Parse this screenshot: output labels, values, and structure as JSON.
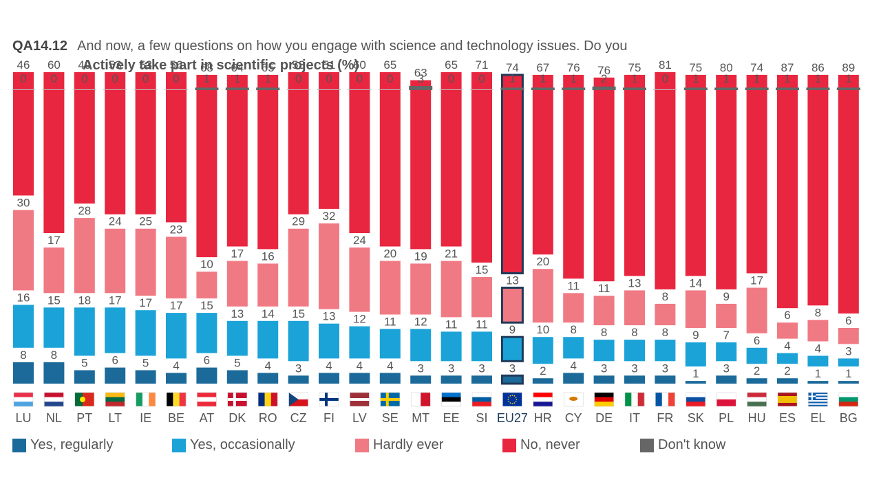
{
  "header": {
    "code": "QA14.12",
    "question": "And now, a few questions on how you engage with science and technology issues. Do you",
    "subtitle": "Actively take part in scientific projects  (%)"
  },
  "colors": {
    "Yes, regularly": "#1b6a9a",
    "Yes, occasionally": "#1ba3d8",
    "Hardly ever": "#f07a84",
    "No, never": "#e8263f",
    "Don't know": "#666666"
  },
  "legend": [
    {
      "label": "Yes, regularly",
      "key": "regularly"
    },
    {
      "label": "Yes, occasionally",
      "key": "occasionally"
    },
    {
      "label": "Hardly ever",
      "key": "hardly"
    },
    {
      "label": "No, never",
      "key": "never"
    },
    {
      "label": "Don't know",
      "key": "dontknow"
    }
  ],
  "chart_data": {
    "type": "bar",
    "stacked": true,
    "highlight": "EU27",
    "categories": [
      "LU",
      "NL",
      "PT",
      "LT",
      "IE",
      "BE",
      "AT",
      "DK",
      "RO",
      "CZ",
      "FI",
      "LV",
      "SE",
      "MT",
      "EE",
      "SI",
      "EU27",
      "HR",
      "CY",
      "DE",
      "IT",
      "FR",
      "SK",
      "PL",
      "HU",
      "ES",
      "EL",
      "BG"
    ],
    "series": [
      {
        "name": "Yes, regularly",
        "key": "regularly",
        "values": [
          8,
          8,
          5,
          6,
          5,
          4,
          6,
          5,
          4,
          3,
          4,
          4,
          4,
          3,
          3,
          3,
          3,
          2,
          4,
          3,
          3,
          3,
          1,
          3,
          2,
          2,
          1,
          1
        ]
      },
      {
        "name": "Yes, occasionally",
        "key": "occasionally",
        "values": [
          16,
          15,
          18,
          17,
          17,
          17,
          15,
          13,
          14,
          15,
          13,
          12,
          11,
          12,
          11,
          11,
          9,
          10,
          8,
          8,
          8,
          8,
          9,
          7,
          6,
          4,
          4,
          3
        ]
      },
      {
        "name": "Hardly ever",
        "key": "hardly",
        "values": [
          30,
          17,
          28,
          24,
          25,
          23,
          10,
          17,
          16,
          29,
          32,
          24,
          20,
          19,
          21,
          15,
          13,
          20,
          11,
          11,
          13,
          8,
          14,
          9,
          17,
          6,
          8,
          6
        ]
      },
      {
        "name": "No, never",
        "key": "never",
        "values": [
          46,
          60,
          49,
          53,
          53,
          56,
          68,
          64,
          65,
          53,
          51,
          60,
          65,
          63,
          65,
          71,
          74,
          67,
          76,
          76,
          75,
          81,
          75,
          80,
          74,
          87,
          86,
          89
        ]
      },
      {
        "name": "Don't know",
        "key": "dontknow",
        "values": [
          0,
          0,
          0,
          0,
          0,
          0,
          1,
          1,
          1,
          0,
          0,
          0,
          0,
          3,
          0,
          0,
          1,
          1,
          1,
          2,
          1,
          0,
          1,
          1,
          1,
          1,
          1,
          1
        ]
      }
    ]
  }
}
